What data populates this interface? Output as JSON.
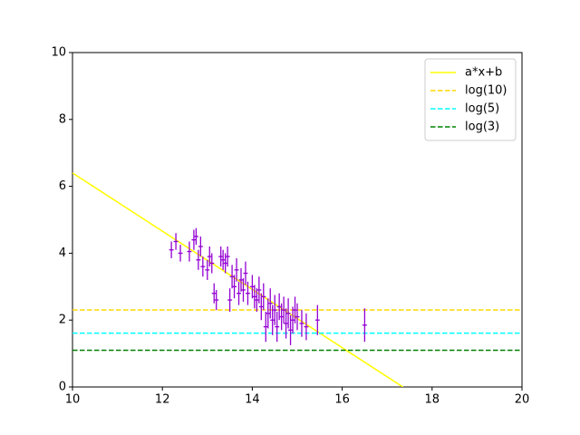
{
  "chart_data": {
    "type": "scatter",
    "xlim": [
      10,
      20
    ],
    "ylim": [
      0,
      10
    ],
    "xticks": [
      10,
      12,
      14,
      16,
      18,
      20
    ],
    "yticks": [
      0,
      2,
      4,
      6,
      8,
      10
    ],
    "legend": "upper right",
    "grid": false,
    "series": [
      {
        "name": "a*x+b",
        "color": "#ffff00",
        "linestyle": "solid",
        "x": [
          10,
          17.35
        ],
        "values": [
          6.4,
          0
        ]
      },
      {
        "name": "log(10)",
        "color": "#ffd700",
        "linestyle": "dashed",
        "x": [
          10,
          20
        ],
        "values": [
          2.303,
          2.303
        ]
      },
      {
        "name": "log(5)",
        "color": "#00ffff",
        "linestyle": "dashed",
        "x": [
          10,
          20
        ],
        "values": [
          1.609,
          1.609
        ]
      },
      {
        "name": "log(3)",
        "color": "#008000",
        "linestyle": "dashed",
        "x": [
          10,
          20
        ],
        "values": [
          1.099,
          1.099
        ]
      },
      {
        "color": "#9400d3",
        "linestyle": "errorbar",
        "x": [
          12.2,
          12.3,
          12.4,
          12.6,
          12.7,
          12.75,
          12.8,
          12.85,
          12.9,
          13.0,
          13.05,
          13.1,
          13.15,
          13.2,
          13.3,
          13.35,
          13.4,
          13.45,
          13.5,
          13.55,
          13.6,
          13.65,
          13.7,
          13.75,
          13.8,
          13.85,
          13.9,
          14.0,
          14.05,
          14.1,
          14.15,
          14.2,
          14.25,
          14.3,
          14.35,
          14.4,
          14.45,
          14.5,
          14.55,
          14.6,
          14.65,
          14.7,
          14.75,
          14.8,
          14.85,
          14.9,
          14.95,
          15.0,
          15.1,
          15.2,
          15.45,
          16.5
        ],
        "values": [
          4.1,
          4.35,
          4.0,
          4.05,
          4.4,
          4.5,
          3.8,
          4.2,
          3.6,
          3.5,
          3.9,
          3.7,
          2.8,
          2.6,
          3.9,
          3.8,
          3.7,
          3.9,
          2.6,
          3.3,
          3.0,
          3.5,
          2.8,
          3.2,
          2.9,
          3.4,
          2.8,
          3.0,
          2.7,
          2.6,
          2.9,
          2.4,
          2.7,
          1.8,
          2.2,
          2.5,
          2.0,
          2.3,
          1.8,
          2.4,
          2.1,
          2.3,
          1.9,
          2.2,
          1.7,
          2.0,
          2.3,
          2.1,
          1.9,
          1.8,
          2.0,
          1.85
        ],
        "x_errors": [
          0.05,
          0.05,
          0.05,
          0.05,
          0.05,
          0.05,
          0.05,
          0.05,
          0.05,
          0.05,
          0.05,
          0.05,
          0.05,
          0.05,
          0.05,
          0.05,
          0.05,
          0.05,
          0.05,
          0.05,
          0.05,
          0.05,
          0.05,
          0.05,
          0.05,
          0.05,
          0.05,
          0.05,
          0.05,
          0.05,
          0.05,
          0.05,
          0.05,
          0.05,
          0.05,
          0.05,
          0.05,
          0.05,
          0.05,
          0.05,
          0.05,
          0.05,
          0.05,
          0.05,
          0.05,
          0.05,
          0.05,
          0.05,
          0.05,
          0.05,
          0.05,
          0.05
        ],
        "y_errors": [
          0.25,
          0.25,
          0.25,
          0.3,
          0.3,
          0.25,
          0.3,
          0.3,
          0.3,
          0.3,
          0.3,
          0.3,
          0.3,
          0.3,
          0.3,
          0.3,
          0.3,
          0.3,
          0.35,
          0.35,
          0.35,
          0.35,
          0.35,
          0.35,
          0.35,
          0.35,
          0.35,
          0.35,
          0.35,
          0.35,
          0.4,
          0.4,
          0.4,
          0.45,
          0.45,
          0.45,
          0.45,
          0.45,
          0.45,
          0.4,
          0.4,
          0.4,
          0.45,
          0.45,
          0.45,
          0.4,
          0.4,
          0.4,
          0.4,
          0.4,
          0.45,
          0.5
        ]
      }
    ]
  }
}
